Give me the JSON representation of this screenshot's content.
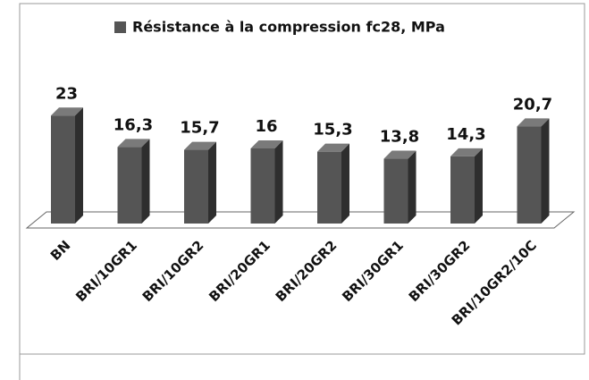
{
  "chart_data": {
    "type": "bar3d",
    "categories": [
      "BN",
      "BRI/10GR1",
      "BRI/10GR2",
      "BRI/20GR1",
      "BRI/20GR2",
      "BRI/30GR1",
      "BRI/30GR2",
      "BRI/10GR2/10C"
    ],
    "series": [
      {
        "name": "Résistance à la compression fc28, MPa",
        "color": "#555555",
        "values": [
          23,
          16.3,
          15.7,
          16,
          15.3,
          13.8,
          14.3,
          20.7
        ],
        "value_labels": [
          "23",
          "16,3",
          "15,7",
          "16",
          "15,3",
          "13,8",
          "14,3",
          "20,7"
        ]
      }
    ],
    "legend": "top"
  }
}
